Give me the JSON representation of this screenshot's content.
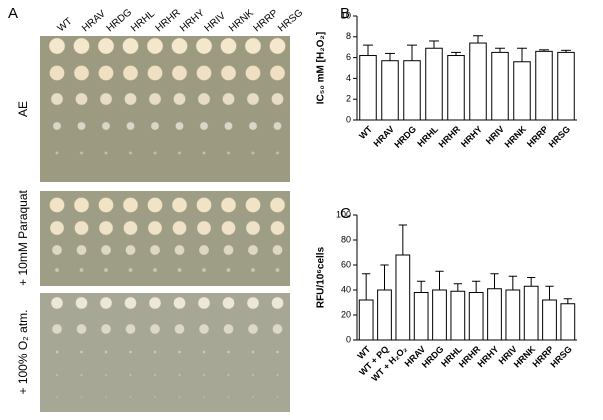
{
  "panel_a": {
    "label": "A",
    "strains": [
      "WT",
      "HRAV",
      "HRDG",
      "HRHL",
      "HRHR",
      "HRHY",
      "HRIV",
      "HRNK",
      "HRRP",
      "HRSG"
    ],
    "conditions": [
      "AE",
      "+ 10mM Paraquat",
      "+ 100% O₂ atm."
    ]
  },
  "chart_data": [
    {
      "type": "bar",
      "panel": "B",
      "ylabel": "IC₅₀ mM [H₂O₂]",
      "categories": [
        "WT",
        "HRAV",
        "HRDG",
        "HRHL",
        "HRHR",
        "HRHY",
        "HRIV",
        "HRNK",
        "HRRP",
        "HRSG"
      ],
      "values": [
        6.2,
        5.7,
        5.7,
        6.9,
        6.2,
        7.4,
        6.5,
        5.6,
        6.6,
        6.5
      ],
      "errors": [
        1.0,
        0.7,
        1.5,
        0.7,
        0.3,
        0.7,
        0.4,
        1.3,
        0.15,
        0.2
      ],
      "color": "#ffffff",
      "ylim": [
        0,
        10
      ],
      "yticks": [
        0,
        2,
        4,
        6,
        8,
        10
      ]
    },
    {
      "type": "bar",
      "panel": "C",
      "ylabel": "RFU/10⁶cells",
      "categories": [
        "WT",
        "WT + PQ",
        "WT + H₂O₂",
        "HRAV",
        "HRDG",
        "HRHL",
        "HRHR",
        "HRHY",
        "HRIV",
        "HRNK",
        "HRRP",
        "HRSG"
      ],
      "values": [
        32,
        40,
        68,
        38,
        40,
        39,
        38,
        41,
        40,
        43,
        32,
        29
      ],
      "errors": [
        21,
        20,
        24,
        9,
        15,
        6,
        9,
        12,
        11,
        7,
        11,
        4
      ],
      "color": "#ffffff",
      "ylim": [
        0,
        100
      ],
      "yticks": [
        0,
        20,
        40,
        60,
        80,
        100
      ]
    }
  ]
}
